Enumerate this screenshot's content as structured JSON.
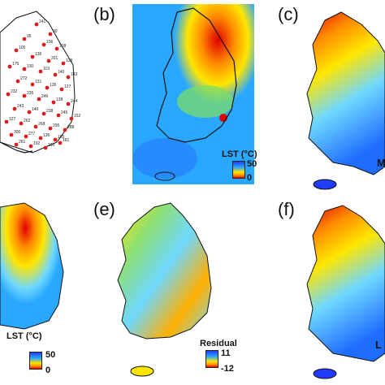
{
  "panels": [
    {
      "letter": "",
      "type": "stations"
    },
    {
      "letter": "(b)",
      "type": "interpolated"
    },
    {
      "letter": "(c)",
      "type": "modis"
    },
    {
      "letter": "",
      "type": "interpolated"
    },
    {
      "letter": "(e)",
      "type": "residual"
    },
    {
      "letter": "(f)",
      "type": "final"
    }
  ],
  "legend_b": {
    "title": "LST (°C)",
    "max": "50",
    "min": "0"
  },
  "legend_d": {
    "title": "LST (°C)",
    "max": "50",
    "min": "0"
  },
  "legend_e": {
    "title": "Residual",
    "max": "11",
    "min": "-12"
  },
  "partial_text": {
    "c": "M",
    "f": "L"
  },
  "station_numbers": [
    "241",
    "90",
    "95",
    "106",
    "108",
    "105",
    "136",
    "201",
    "129",
    "175",
    "130",
    "119",
    "140",
    "143",
    "272",
    "131",
    "135",
    "127",
    "232",
    "235",
    "246",
    "138",
    "244",
    "243",
    "140",
    "238",
    "245",
    "152",
    "127",
    "262",
    "268",
    "295",
    "288",
    "300",
    "277",
    "136",
    "165",
    "261",
    "192",
    "190",
    "181"
  ],
  "colors": {
    "hot": "#e00000",
    "warm": "#ff8c00",
    "yellow": "#ffe600",
    "cool": "#2aa8ff",
    "cold": "#1f3cff",
    "station": "#d81e1e",
    "outline": "#111111"
  }
}
